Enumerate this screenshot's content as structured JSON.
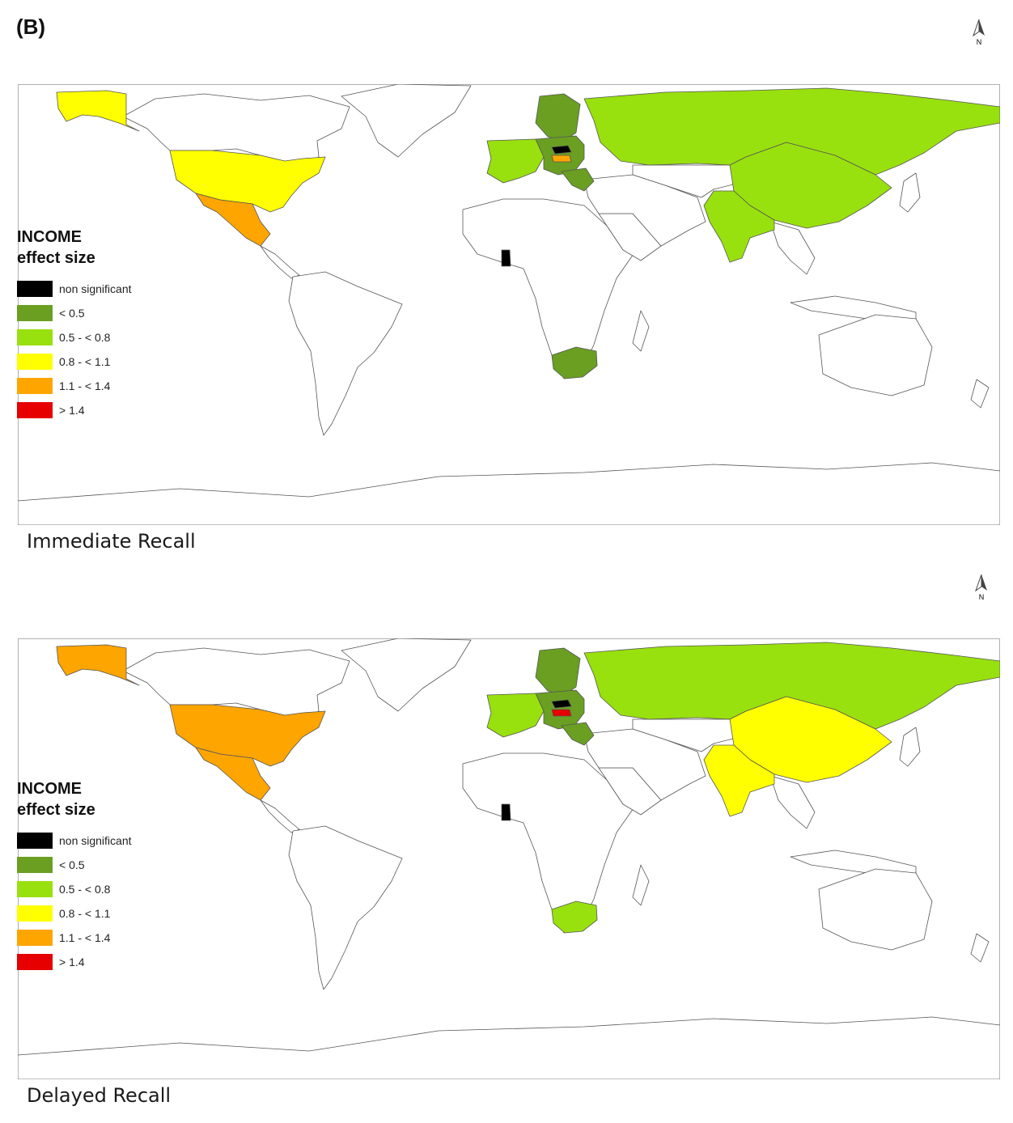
{
  "figure": {
    "panel_label": "(B)"
  },
  "colors": {
    "non_significant": "#000000",
    "lt_0_5": "#6a9f22",
    "c_0_5_0_8": "#99e00f",
    "c_0_8_1_1": "#ffff00",
    "c_1_1_1_4": "#ffa500",
    "gt_1_4": "#e60000",
    "no_data": "#ffffff"
  },
  "legend": {
    "title": "INCOME",
    "subtitle": "effect size",
    "items": [
      {
        "label": "non significant",
        "color": "#000000"
      },
      {
        "label": "< 0.5",
        "color": "#6a9f22"
      },
      {
        "label": "0.5 - < 0.8",
        "color": "#99e00f"
      },
      {
        "label": "0.8 - < 1.1",
        "color": "#ffff00"
      },
      {
        "label": "1.1 - < 1.4",
        "color": "#ffa500"
      },
      {
        "label": "> 1.4",
        "color": "#e60000"
      }
    ]
  },
  "north_arrow": {
    "label": "N"
  },
  "maps": [
    {
      "caption": "Immediate Recall",
      "regions": {
        "alaska": "0.8 - < 1.1",
        "usa": "0.8 - < 1.1",
        "mexico": "1.1 - < 1.4",
        "russia": "0.5 - < 0.8",
        "china": "0.5 - < 0.8",
        "india": "0.5 - < 0.8",
        "scandinavia": "< 0.5",
        "western_europe": "0.5 - < 0.8",
        "central_europe": "< 0.5",
        "czech": "non significant",
        "austria": "1.1 - < 1.4",
        "ghana": "non significant",
        "south_africa": "< 0.5"
      }
    },
    {
      "caption": "Delayed Recall",
      "regions": {
        "alaska": "1.1 - < 1.4",
        "usa": "1.1 - < 1.4",
        "mexico": "1.1 - < 1.4",
        "russia": "0.5 - < 0.8",
        "china": "0.8 - < 1.1",
        "india": "0.8 - < 1.1",
        "scandinavia": "< 0.5",
        "western_europe": "0.5 - < 0.8",
        "central_europe": "< 0.5",
        "czech": "non significant",
        "austria": "> 1.4",
        "ghana": "non significant",
        "south_africa": "0.5 - < 0.8"
      }
    }
  ]
}
